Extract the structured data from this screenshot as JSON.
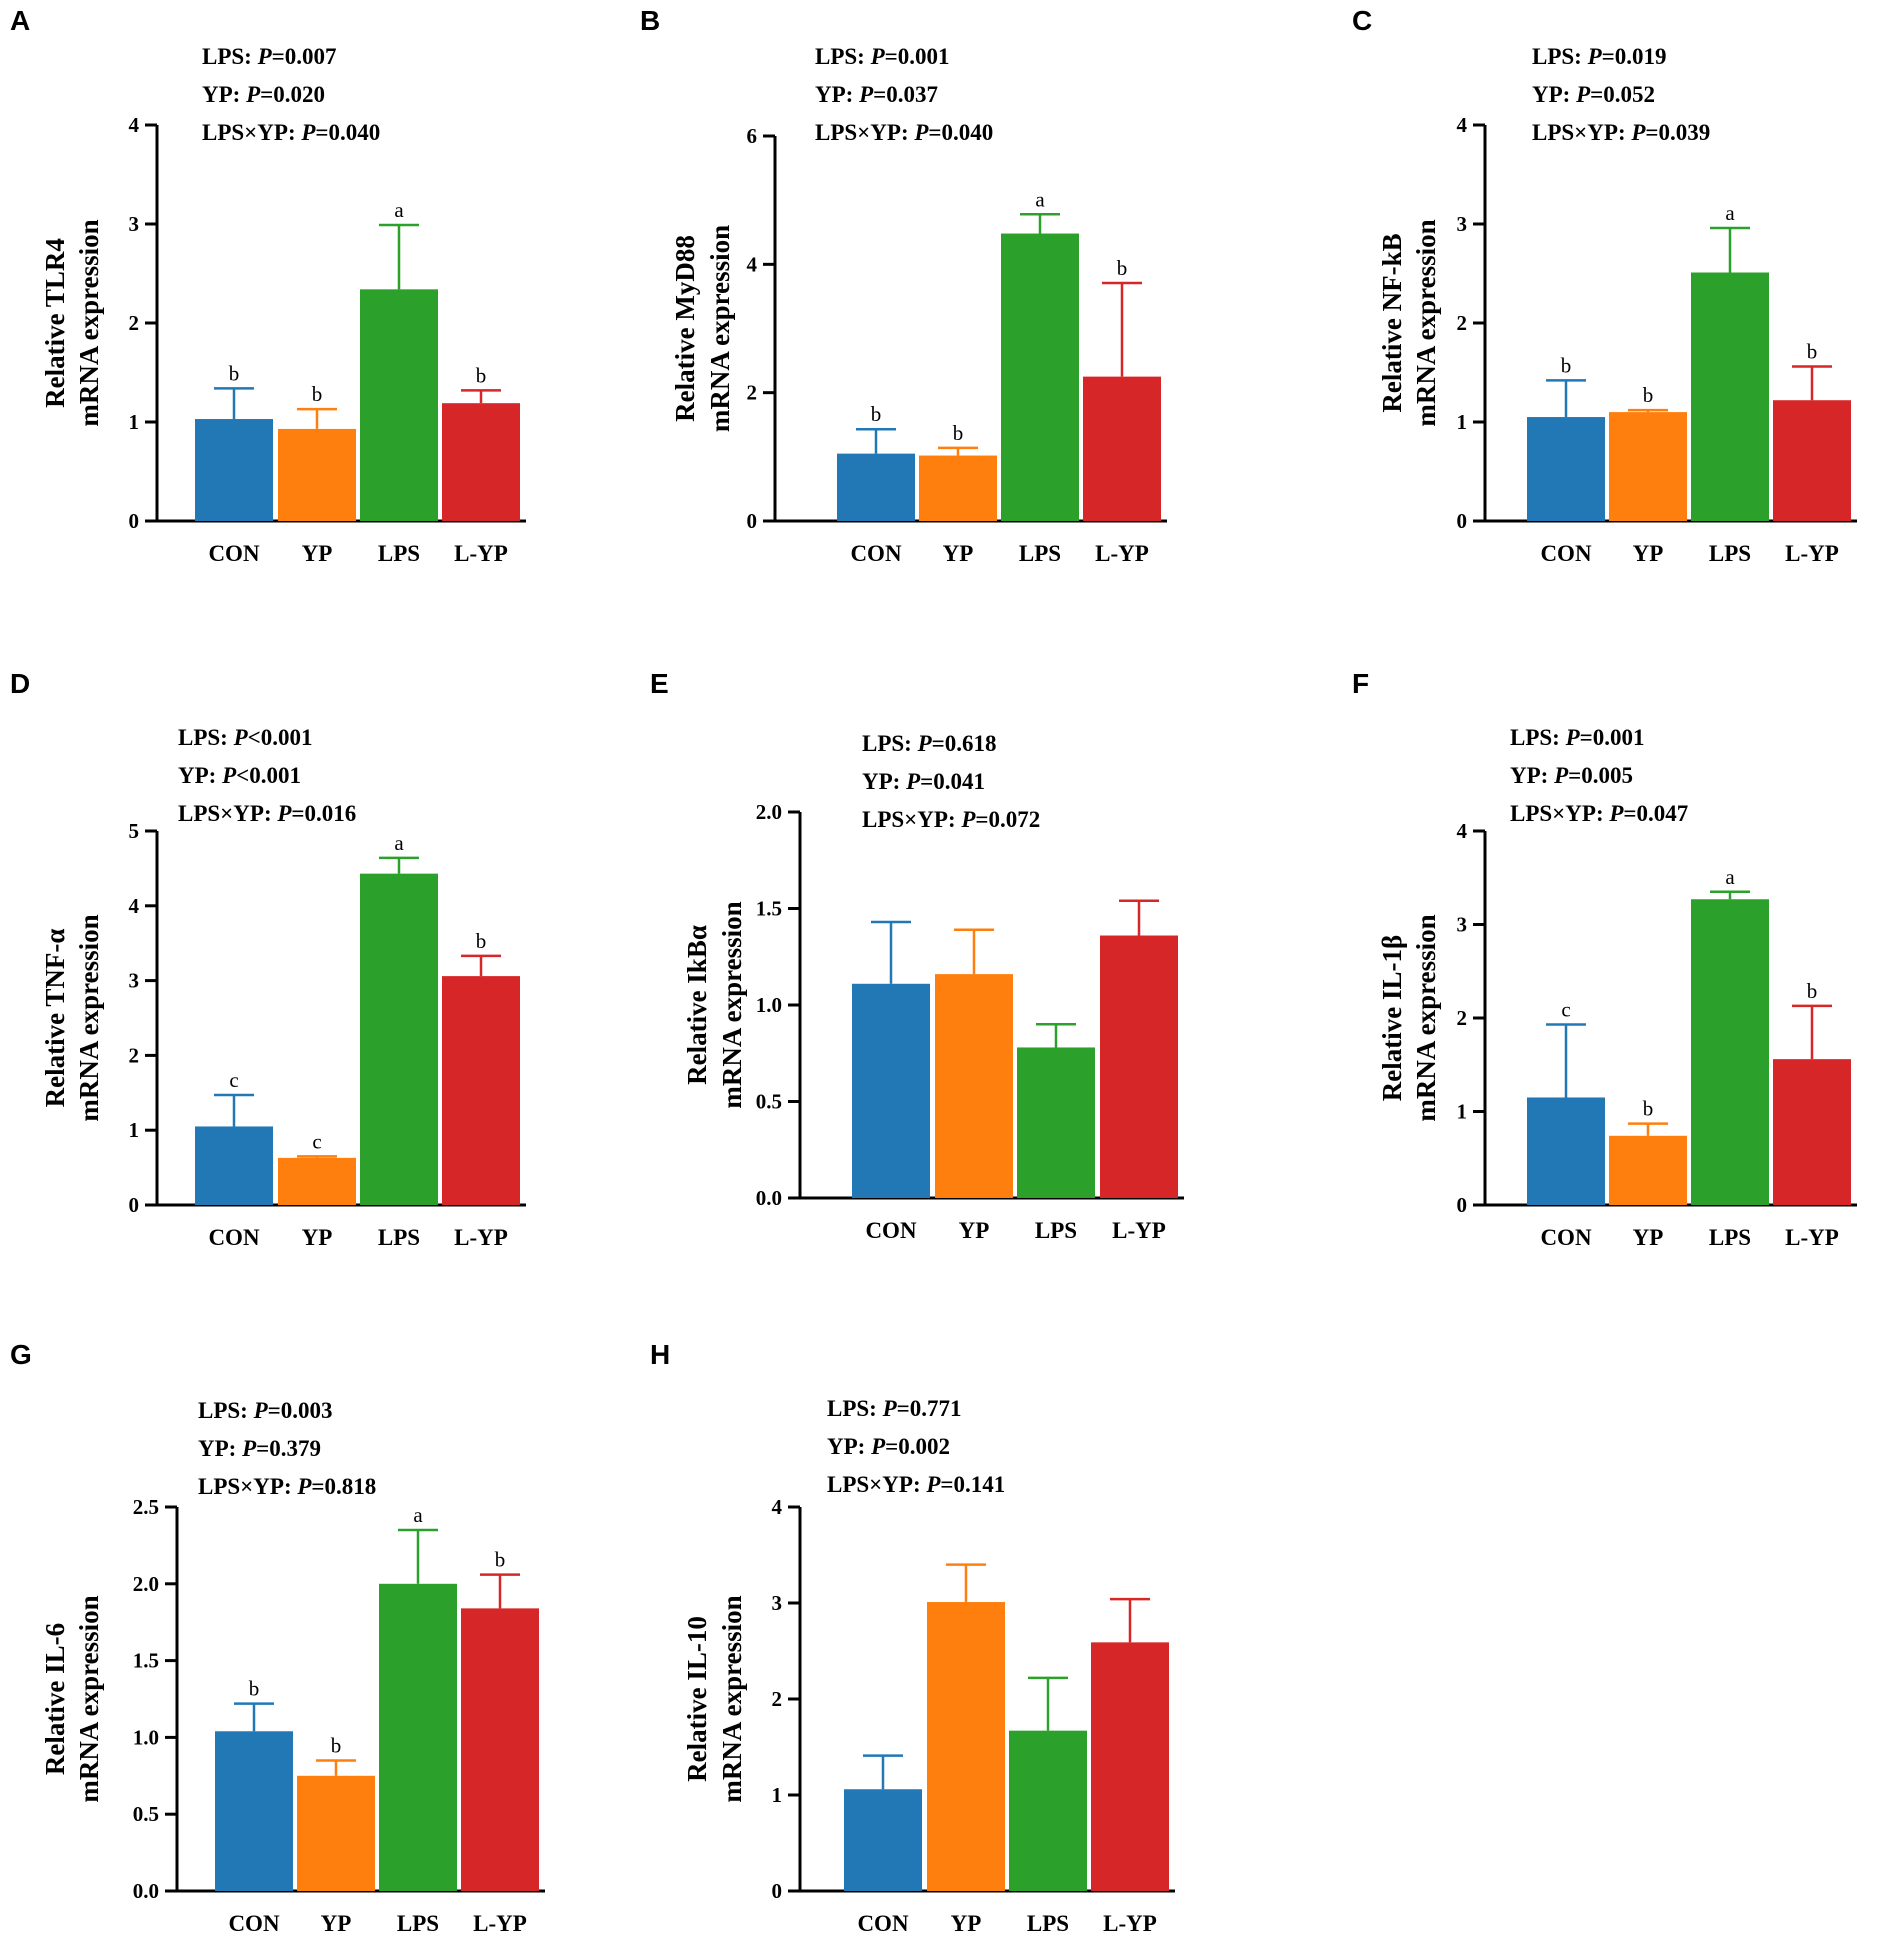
{
  "figure": {
    "categories": [
      "CON",
      "YP",
      "LPS",
      "L-YP"
    ]
  },
  "chart_data": [
    {
      "panel": "A",
      "type": "bar",
      "ylabel_line1": "Relative TLR4",
      "ylabel_line2": "mRNA expression",
      "categories": [
        "CON",
        "YP",
        "LPS",
        "L-YP"
      ],
      "values": [
        1.03,
        0.93,
        2.34,
        1.19
      ],
      "errors": [
        0.31,
        0.2,
        0.65,
        0.13
      ],
      "letters": [
        "b",
        "b",
        "a",
        "b"
      ],
      "ylim": [
        0,
        4
      ],
      "yticks": [
        "0",
        "1",
        "2",
        "3",
        "4"
      ],
      "stats": [
        {
          "label": "LPS: ",
          "p": "P",
          "value": "=0.007"
        },
        {
          "label": "YP: ",
          "p": "P",
          "value": "=0.020"
        },
        {
          "label": "LPS×YP: ",
          "p": "P",
          "value": "=0.040"
        }
      ],
      "colors": [
        "#2178b5",
        "#fe7f0e",
        "#2ba02b",
        "#d62627"
      ]
    },
    {
      "panel": "B",
      "type": "bar",
      "ylabel_line1": "Relative MyD88",
      "ylabel_line2": "mRNA expression",
      "categories": [
        "CON",
        "YP",
        "LPS",
        "L-YP"
      ],
      "values": [
        1.05,
        1.02,
        4.48,
        2.25
      ],
      "errors": [
        0.38,
        0.12,
        0.3,
        1.46
      ],
      "letters": [
        "b",
        "b",
        "a",
        "b"
      ],
      "ylim": [
        0,
        6
      ],
      "yticks": [
        "0",
        "2",
        "4",
        "6"
      ],
      "stats": [
        {
          "label": "LPS: ",
          "p": "P",
          "value": "=0.001"
        },
        {
          "label": "YP: ",
          "p": "P",
          "value": "=0.037"
        },
        {
          "label": "LPS×YP: ",
          "p": "P",
          "value": "=0.040"
        }
      ],
      "colors": [
        "#2178b5",
        "#fe7f0e",
        "#2ba02b",
        "#d62627"
      ]
    },
    {
      "panel": "C",
      "type": "bar",
      "ylabel_line1": "Relative NF-kB",
      "ylabel_line2": "mRNA expression",
      "categories": [
        "CON",
        "YP",
        "LPS",
        "L-YP"
      ],
      "values": [
        1.05,
        1.1,
        2.51,
        1.22
      ],
      "errors": [
        0.37,
        0.02,
        0.45,
        0.34
      ],
      "letters": [
        "b",
        "b",
        "a",
        "b"
      ],
      "ylim": [
        0,
        4
      ],
      "yticks": [
        "0",
        "1",
        "2",
        "3",
        "4"
      ],
      "stats": [
        {
          "label": "LPS: ",
          "p": "P",
          "value": "=0.019"
        },
        {
          "label": "YP: ",
          "p": "P",
          "value": "=0.052"
        },
        {
          "label": "LPS×YP: ",
          "p": "P",
          "value": "=0.039"
        }
      ],
      "colors": [
        "#2178b5",
        "#fe7f0e",
        "#2ba02b",
        "#d62627"
      ]
    },
    {
      "panel": "D",
      "type": "bar",
      "ylabel_line1": "Relative TNF-α",
      "ylabel_line2": "mRNA expression",
      "categories": [
        "CON",
        "YP",
        "LPS",
        "L-YP"
      ],
      "values": [
        1.05,
        0.63,
        4.43,
        3.06
      ],
      "errors": [
        0.42,
        0.02,
        0.21,
        0.27
      ],
      "letters": [
        "c",
        "c",
        "a",
        "b"
      ],
      "ylim": [
        0,
        5
      ],
      "yticks": [
        "0",
        "1",
        "2",
        "3",
        "4",
        "5"
      ],
      "stats": [
        {
          "label": "LPS: ",
          "p": "P",
          "value": "<0.001"
        },
        {
          "label": "YP: ",
          "p": "P",
          "value": "<0.001"
        },
        {
          "label": "LPS×YP: ",
          "p": "P",
          "value": "=0.016"
        }
      ],
      "colors": [
        "#2178b5",
        "#fe7f0e",
        "#2ba02b",
        "#d62627"
      ]
    },
    {
      "panel": "E",
      "type": "bar",
      "ylabel_line1": "Relative IkBα",
      "ylabel_line2": "mRNA expression",
      "categories": [
        "CON",
        "YP",
        "LPS",
        "L-YP"
      ],
      "values": [
        1.11,
        1.16,
        0.78,
        1.36
      ],
      "errors": [
        0.32,
        0.23,
        0.12,
        0.18
      ],
      "letters": [
        "",
        "",
        "",
        ""
      ],
      "ylim": [
        0,
        2
      ],
      "yticks": [
        "0.0",
        "0.5",
        "1.0",
        "1.5",
        "2.0"
      ],
      "stats": [
        {
          "label": "LPS: ",
          "p": "P",
          "value": "=0.618"
        },
        {
          "label": "YP: ",
          "p": "P",
          "value": "=0.041"
        },
        {
          "label": "LPS×YP: ",
          "p": "P",
          "value": "=0.072"
        }
      ],
      "colors": [
        "#2178b5",
        "#fe7f0e",
        "#2ba02b",
        "#d62627"
      ]
    },
    {
      "panel": "F",
      "type": "bar",
      "ylabel_line1": "Relative IL-1β",
      "ylabel_line2": "mRNA expression",
      "categories": [
        "CON",
        "YP",
        "LPS",
        "L-YP"
      ],
      "values": [
        1.15,
        0.74,
        3.27,
        1.56
      ],
      "errors": [
        0.78,
        0.13,
        0.08,
        0.57
      ],
      "letters": [
        "c",
        "b",
        "a",
        "b"
      ],
      "ylim": [
        0,
        4
      ],
      "yticks": [
        "0",
        "1",
        "2",
        "3",
        "4"
      ],
      "stats": [
        {
          "label": "LPS: ",
          "p": "P",
          "value": "=0.001"
        },
        {
          "label": "YP: ",
          "p": "P",
          "value": "=0.005"
        },
        {
          "label": "LPS×YP: ",
          "p": "P",
          "value": "=0.047"
        }
      ],
      "colors": [
        "#2178b5",
        "#fe7f0e",
        "#2ba02b",
        "#d62627"
      ]
    },
    {
      "panel": "G",
      "type": "bar",
      "ylabel_line1": "Relative IL-6",
      "ylabel_line2": "mRNA expression",
      "categories": [
        "CON",
        "YP",
        "LPS",
        "L-YP"
      ],
      "values": [
        1.04,
        0.75,
        2.0,
        1.84
      ],
      "errors": [
        0.18,
        0.1,
        0.35,
        0.22
      ],
      "letters": [
        "b",
        "b",
        "a",
        "b"
      ],
      "ylim": [
        0,
        2.5
      ],
      "yticks": [
        "0.0",
        "0.5",
        "1.0",
        "1.5",
        "2.0",
        "2.5"
      ],
      "stats": [
        {
          "label": "LPS: ",
          "p": "P",
          "value": "=0.003"
        },
        {
          "label": "YP: ",
          "p": "P",
          "value": "=0.379"
        },
        {
          "label": "LPS×YP: ",
          "p": "P",
          "value": "=0.818"
        }
      ],
      "colors": [
        "#2178b5",
        "#fe7f0e",
        "#2ba02b",
        "#d62627"
      ]
    },
    {
      "panel": "H",
      "type": "bar",
      "ylabel_line1": "Relative IL-10",
      "ylabel_line2": "mRNA expression",
      "categories": [
        "CON",
        "YP",
        "LPS",
        "L-YP"
      ],
      "values": [
        1.06,
        3.01,
        1.67,
        2.59
      ],
      "errors": [
        0.35,
        0.39,
        0.55,
        0.45
      ],
      "letters": [
        "",
        "",
        "",
        ""
      ],
      "ylim": [
        0,
        4
      ],
      "yticks": [
        "0",
        "1",
        "2",
        "3",
        "4"
      ],
      "stats": [
        {
          "label": "LPS: ",
          "p": "P",
          "value": "=0.771"
        },
        {
          "label": "YP: ",
          "p": "P",
          "value": "=0.002"
        },
        {
          "label": "LPS×YP: ",
          "p": "P",
          "value": "=0.141"
        }
      ],
      "colors": [
        "#2178b5",
        "#fe7f0e",
        "#2ba02b",
        "#d62627"
      ]
    }
  ]
}
